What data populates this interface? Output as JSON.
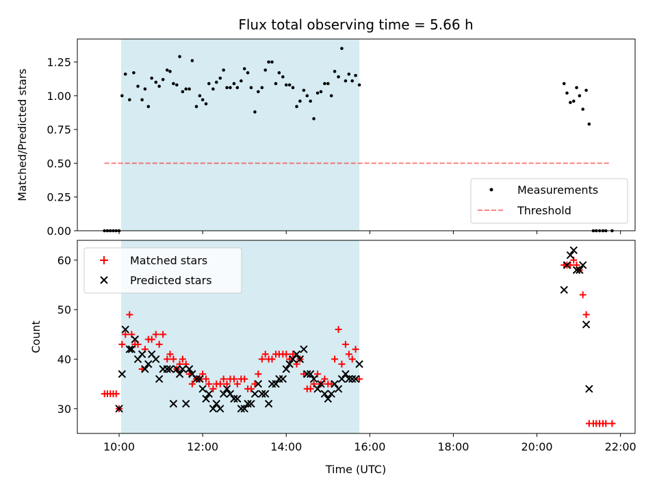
{
  "title": "Flux total observing time = 5.66 h",
  "colors": {
    "shade": "#add8e6",
    "threshold": "#ff0000",
    "matched": "#ff0000",
    "predicted": "#000000"
  },
  "chart_data": [
    {
      "type": "scatter",
      "ylabel": "Matched/Predicted stars",
      "xlim_hours": [
        9.0,
        22.35
      ],
      "ylim": [
        0,
        1.42
      ],
      "yticks": [
        "0.00",
        "0.25",
        "0.50",
        "0.75",
        "1.00",
        "1.25"
      ],
      "ytick_values": [
        0,
        0.25,
        0.5,
        0.75,
        1.0,
        1.25
      ],
      "shaded_span_hours": [
        10.05,
        15.75
      ],
      "legend": {
        "placement": "lower-right",
        "entries": [
          "Measurements",
          "Threshold"
        ]
      },
      "threshold": {
        "name": "Threshold",
        "y": 0.5,
        "x_hours": [
          9.65,
          21.75
        ]
      },
      "series": [
        {
          "name": "Measurements",
          "x_hours": [
            9.65,
            9.72,
            9.79,
            9.86,
            9.93,
            10.0,
            10.07,
            10.15,
            10.25,
            10.35,
            10.45,
            10.55,
            10.62,
            10.7,
            10.78,
            10.88,
            10.96,
            11.05,
            11.15,
            11.22,
            11.3,
            11.38,
            11.45,
            11.52,
            11.6,
            11.68,
            11.75,
            11.85,
            11.93,
            12.0,
            12.08,
            12.15,
            12.25,
            12.33,
            12.42,
            12.5,
            12.58,
            12.66,
            12.75,
            12.83,
            12.92,
            13.0,
            13.08,
            13.16,
            13.25,
            13.33,
            13.42,
            13.5,
            13.58,
            13.66,
            13.75,
            13.83,
            13.92,
            14.0,
            14.08,
            14.16,
            14.25,
            14.33,
            14.42,
            14.5,
            14.58,
            14.66,
            14.75,
            14.83,
            14.92,
            15.0,
            15.08,
            15.16,
            15.25,
            15.33,
            15.42,
            15.5,
            15.58,
            15.66,
            15.75,
            20.65,
            20.72,
            20.8,
            20.88,
            20.95,
            21.02,
            21.1,
            21.18,
            21.25,
            21.35,
            21.42,
            21.5,
            21.58,
            21.65,
            21.8
          ],
          "y": [
            0,
            0,
            0,
            0,
            0,
            0,
            1.0,
            1.16,
            0.97,
            1.17,
            1.07,
            0.97,
            1.05,
            0.92,
            1.13,
            1.1,
            1.07,
            1.12,
            1.19,
            1.18,
            1.09,
            1.08,
            1.29,
            1.03,
            1.05,
            1.05,
            1.26,
            0.92,
            1.0,
            0.97,
            0.94,
            1.09,
            1.05,
            1.1,
            1.13,
            1.19,
            1.06,
            1.06,
            1.09,
            1.06,
            1.11,
            1.2,
            1.17,
            1.06,
            0.88,
            1.03,
            1.06,
            1.19,
            1.25,
            1.25,
            1.09,
            1.17,
            1.14,
            1.08,
            1.08,
            1.06,
            0.92,
            0.96,
            1.04,
            1.0,
            0.96,
            0.83,
            1.02,
            1.03,
            1.09,
            1.09,
            1.0,
            1.18,
            1.14,
            1.35,
            1.11,
            1.16,
            1.11,
            1.15,
            1.08,
            1.09,
            1.02,
            0.95,
            0.96,
            1.06,
            1.0,
            0.9,
            1.04,
            0.79,
            0,
            0,
            0,
            0,
            0,
            0
          ]
        }
      ]
    },
    {
      "type": "scatter",
      "ylabel": "Count",
      "xlabel": "Time (UTC)",
      "xlim_hours": [
        9.0,
        22.35
      ],
      "ylim": [
        25,
        64
      ],
      "xticks": [
        "10:00",
        "12:00",
        "14:00",
        "16:00",
        "18:00",
        "20:00",
        "22:00"
      ],
      "xtick_hours": [
        10,
        12,
        14,
        16,
        18,
        20,
        22
      ],
      "yticks": [
        "30",
        "40",
        "50",
        "60"
      ],
      "ytick_values": [
        30,
        40,
        50,
        60
      ],
      "shaded_span_hours": [
        10.05,
        15.75
      ],
      "legend": {
        "placement": "upper-left",
        "entries": [
          "Matched stars",
          "Predicted stars"
        ]
      },
      "series": [
        {
          "name": "Matched stars",
          "marker": "plus",
          "x_hours": [
            9.65,
            9.72,
            9.79,
            9.86,
            9.93,
            10.0,
            10.07,
            10.15,
            10.25,
            10.3,
            10.38,
            10.45,
            10.55,
            10.62,
            10.7,
            10.78,
            10.88,
            10.96,
            11.05,
            11.15,
            11.22,
            11.3,
            11.38,
            11.45,
            11.52,
            11.6,
            11.68,
            11.75,
            11.85,
            11.93,
            12.0,
            12.08,
            12.15,
            12.25,
            12.33,
            12.42,
            12.5,
            12.58,
            12.66,
            12.75,
            12.83,
            12.92,
            13.0,
            13.08,
            13.16,
            13.25,
            13.33,
            13.42,
            13.5,
            13.58,
            13.66,
            13.75,
            13.83,
            13.92,
            14.0,
            14.08,
            14.16,
            14.25,
            14.33,
            14.42,
            14.5,
            14.58,
            14.66,
            14.75,
            14.83,
            14.92,
            15.0,
            15.08,
            15.16,
            15.25,
            15.33,
            15.42,
            15.5,
            15.58,
            15.66,
            15.75,
            20.65,
            20.72,
            20.8,
            20.88,
            20.95,
            21.02,
            21.1,
            21.18,
            21.25,
            21.35,
            21.42,
            21.5,
            21.58,
            21.65,
            21.8
          ],
          "y": [
            33,
            33,
            33,
            33,
            33,
            30,
            43,
            45,
            49,
            45,
            43,
            43,
            38,
            42,
            44,
            44,
            45,
            43,
            45,
            40,
            41,
            40,
            38,
            39,
            40,
            39,
            37,
            35,
            36,
            36,
            37,
            36,
            35,
            34,
            35,
            35,
            36,
            35,
            36,
            36,
            35,
            36,
            36,
            34,
            34,
            35,
            37,
            40,
            41,
            40,
            40,
            41,
            41,
            41,
            41,
            40,
            41,
            39,
            40,
            37,
            34,
            34,
            35,
            37,
            35,
            36,
            35,
            35,
            40,
            46,
            39,
            43,
            41,
            40,
            42,
            36,
            59,
            59,
            59,
            60,
            59,
            58,
            53,
            49,
            27,
            27,
            27,
            27,
            27,
            27,
            27
          ],
          "y_comment": ""
        },
        {
          "name": "Predicted stars",
          "marker": "x",
          "x_hours": [
            10.0,
            10.07,
            10.15,
            10.25,
            10.3,
            10.38,
            10.45,
            10.55,
            10.62,
            10.7,
            10.78,
            10.88,
            10.96,
            11.05,
            11.15,
            11.22,
            11.3,
            11.38,
            11.45,
            11.52,
            11.6,
            11.68,
            11.75,
            11.85,
            11.93,
            12.0,
            12.08,
            12.15,
            12.25,
            12.33,
            12.42,
            12.5,
            12.58,
            12.66,
            12.75,
            12.83,
            12.92,
            13.0,
            13.08,
            13.16,
            13.25,
            13.33,
            13.42,
            13.5,
            13.58,
            13.66,
            13.75,
            13.83,
            13.92,
            14.0,
            14.08,
            14.16,
            14.25,
            14.33,
            14.42,
            14.5,
            14.58,
            14.66,
            14.75,
            14.83,
            14.92,
            15.0,
            15.08,
            15.16,
            15.25,
            15.33,
            15.42,
            15.5,
            15.58,
            15.66,
            15.75,
            20.65,
            20.72,
            20.8,
            20.88,
            20.95,
            21.02,
            21.1,
            21.18,
            21.25
          ],
          "y": [
            30,
            37,
            46,
            42,
            42,
            44,
            40,
            41,
            38,
            39,
            41,
            40,
            36,
            38,
            38,
            38,
            31,
            38,
            37,
            38,
            31,
            38,
            37,
            36,
            36,
            34,
            32,
            33,
            30,
            31,
            30,
            33,
            34,
            33,
            32,
            32,
            30,
            30,
            31,
            31,
            33,
            35,
            33,
            33,
            31,
            35,
            35,
            36,
            36,
            38,
            39,
            40,
            41,
            40,
            42,
            37,
            37,
            36,
            34,
            35,
            33,
            32,
            33,
            35,
            34,
            36,
            37,
            36,
            36,
            36,
            39,
            54,
            59,
            61,
            62,
            58,
            58,
            59,
            47,
            34
          ]
        }
      ]
    }
  ]
}
